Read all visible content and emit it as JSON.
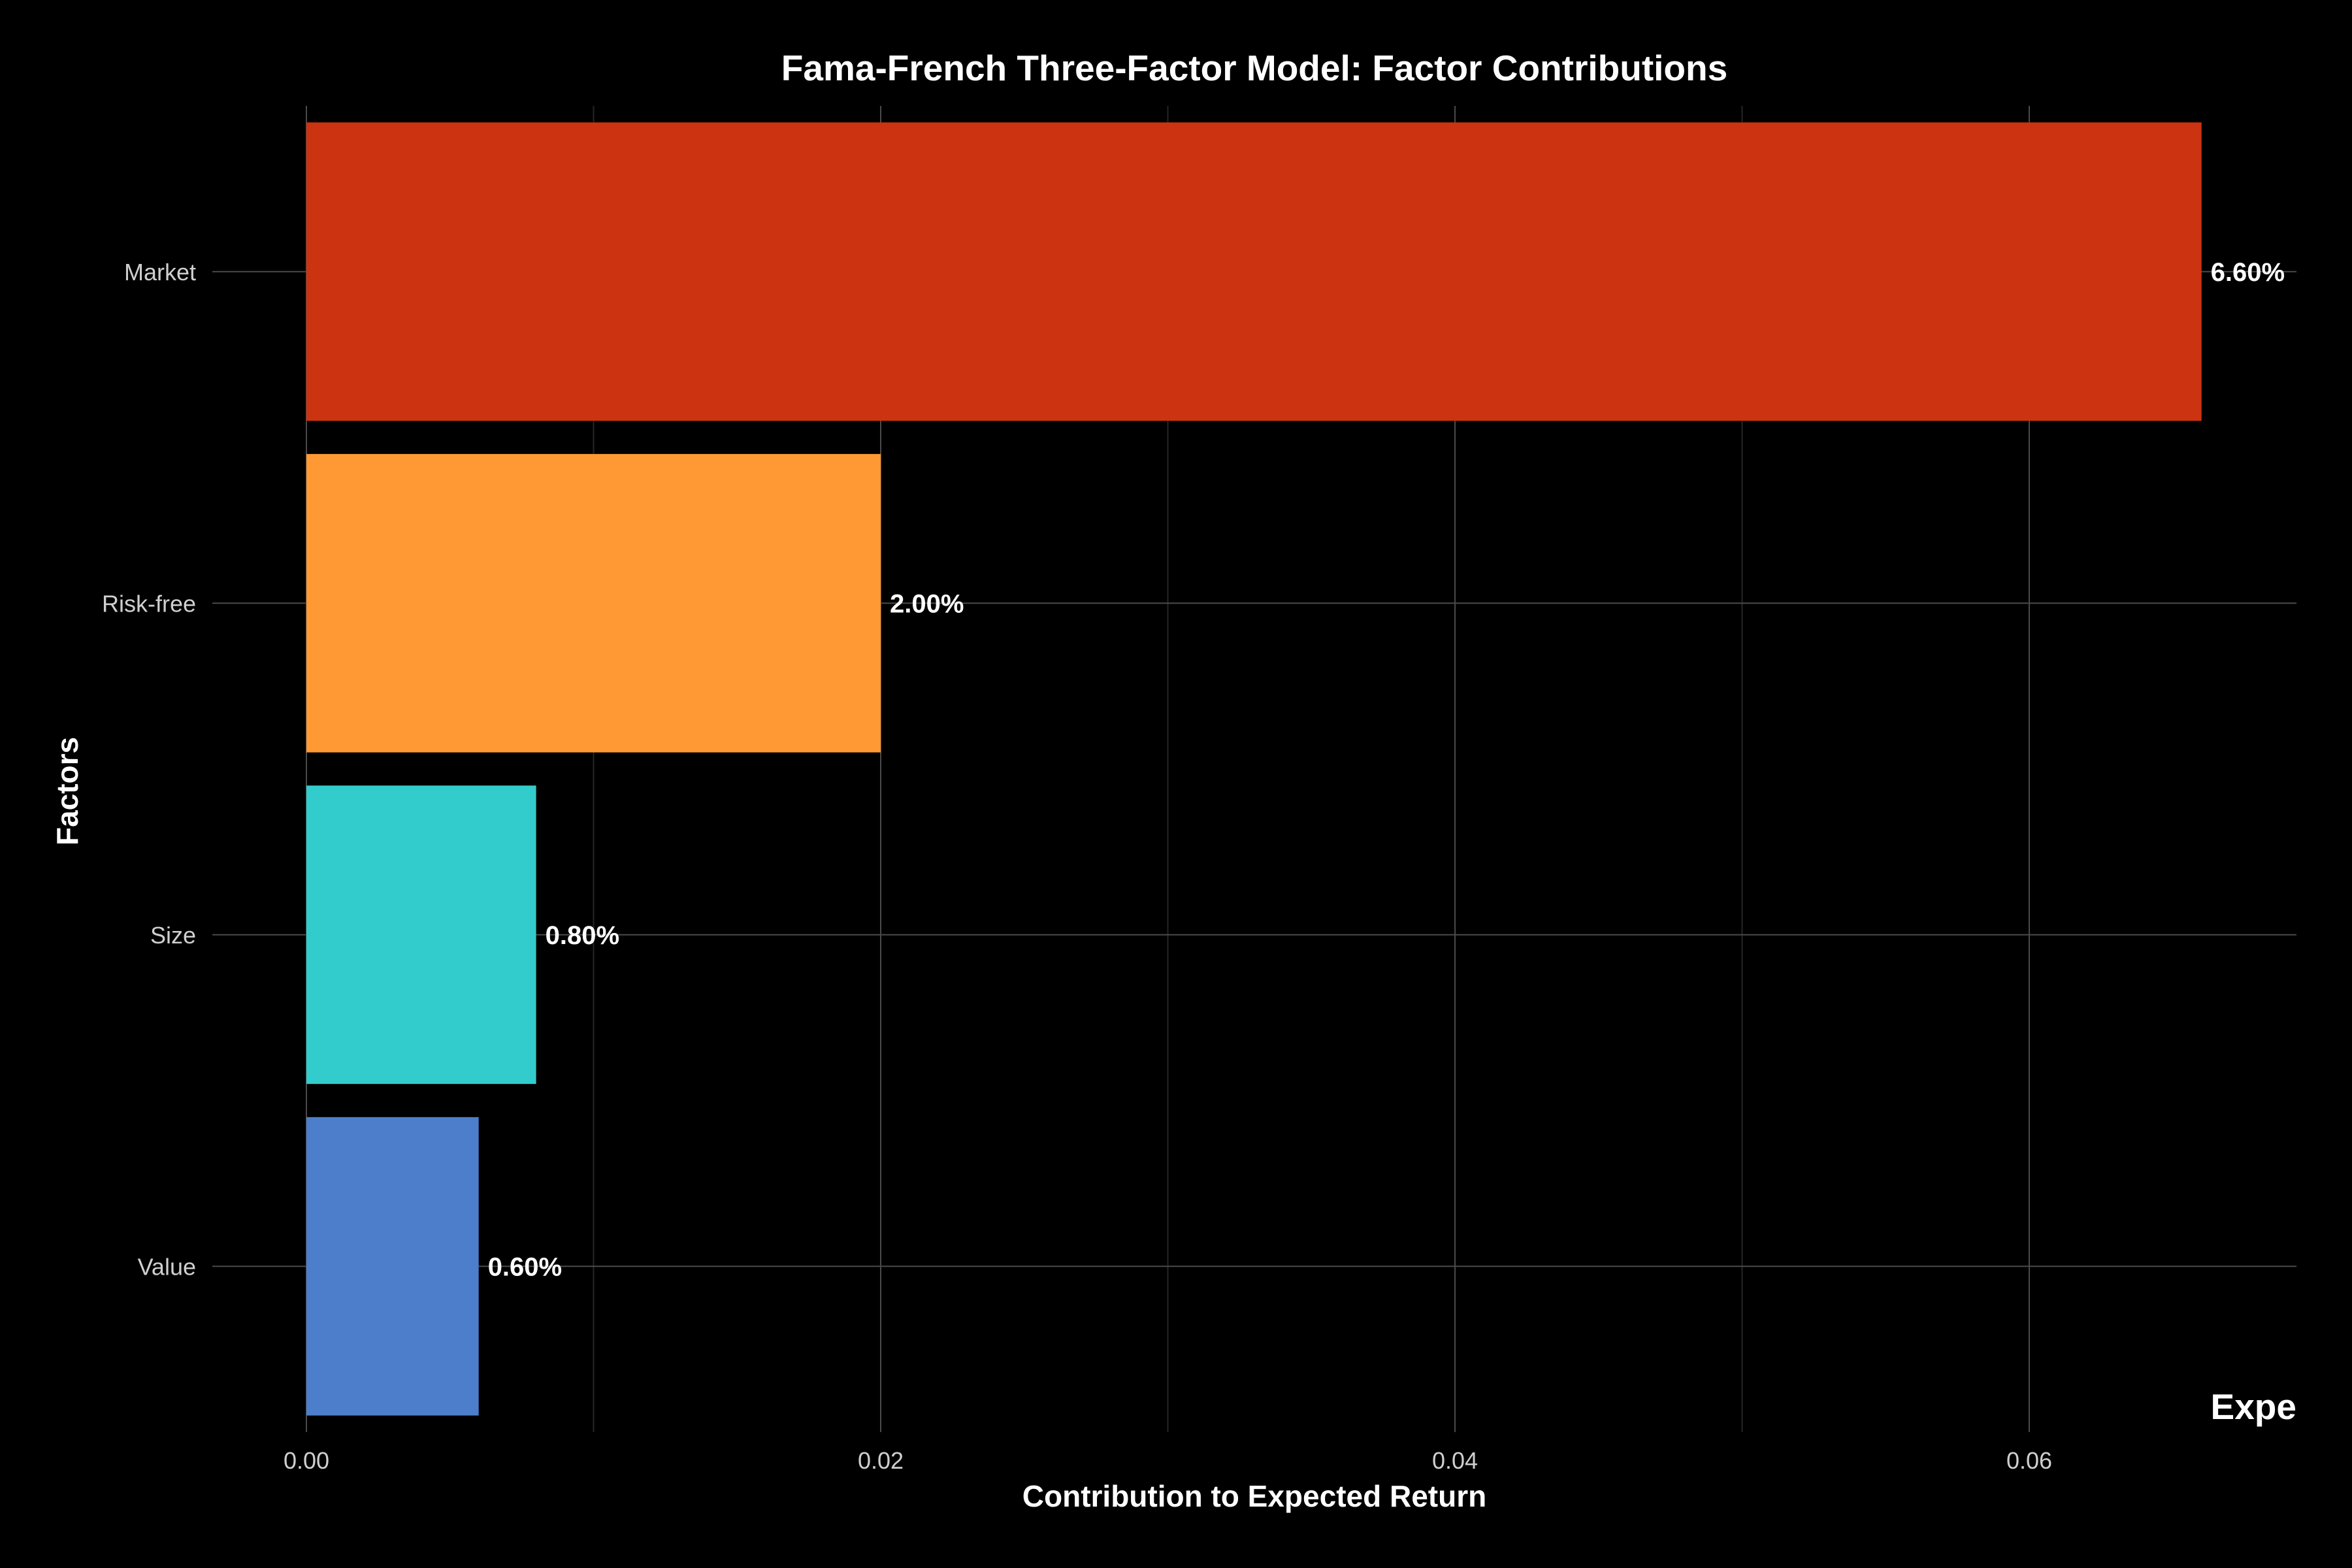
{
  "chart_data": {
    "type": "bar",
    "orientation": "horizontal",
    "title": "Fama-French Three-Factor Model: Factor Contributions",
    "xlabel": "Contribution to Expected Return",
    "ylabel": "Factors",
    "corner_label": "Expe",
    "categories": [
      "Market",
      "Risk-free",
      "Size",
      "Value"
    ],
    "values": [
      0.066,
      0.02,
      0.008,
      0.006
    ],
    "value_labels": [
      "6.60%",
      "2.00%",
      "0.80%",
      "0.60%"
    ],
    "colors": [
      "#cc3311",
      "#ff9933",
      "#33cccc",
      "#4d7ecc"
    ],
    "xlim": [
      0,
      0.0693
    ],
    "x_ticks": [
      0,
      0.02,
      0.04,
      0.06
    ],
    "x_tick_labels": [
      "0.00",
      "0.02",
      "0.04",
      "0.06"
    ],
    "grid": true,
    "background": "#000000"
  }
}
